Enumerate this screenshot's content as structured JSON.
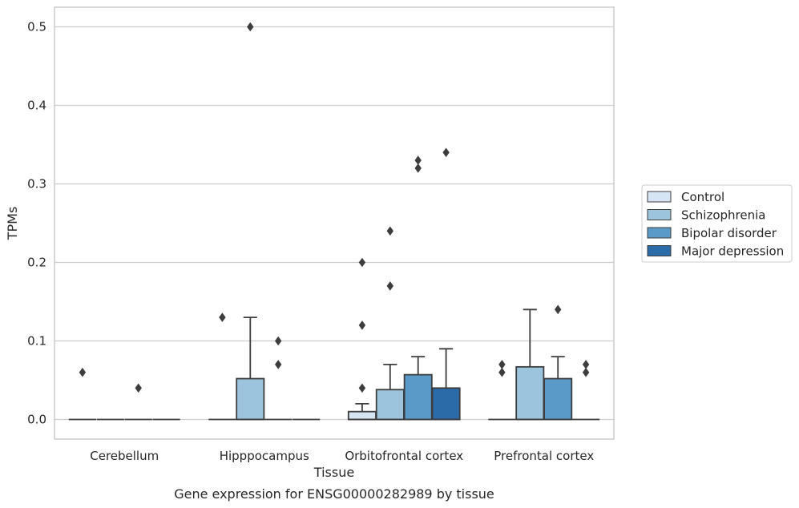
{
  "chart_data": {
    "type": "box",
    "title": "",
    "caption": "Gene expression for ENSG00000282989 by tissue",
    "xlabel": "Tissue",
    "ylabel": "TPMs",
    "ylim": [
      -0.025,
      0.525
    ],
    "yticks": [
      "0.0",
      "0.1",
      "0.2",
      "0.3",
      "0.4",
      "0.5"
    ],
    "ytick_values": [
      0.0,
      0.1,
      0.2,
      0.3,
      0.4,
      0.5
    ],
    "grid": true,
    "legend_position": "right",
    "categories": [
      "Cerebellum",
      "Hipppocampus",
      "Orbitofrontal cortex",
      "Prefrontal cortex"
    ],
    "series": [
      {
        "name": "Control",
        "color": "#d6e5f3",
        "boxes": [
          {
            "q1": 0,
            "median": 0,
            "q3": 0,
            "whisker_low": 0,
            "whisker_high": 0,
            "outliers": [
              0.06
            ]
          },
          {
            "q1": 0,
            "median": 0,
            "q3": 0,
            "whisker_low": 0,
            "whisker_high": 0,
            "outliers": [
              0.13
            ]
          },
          {
            "q1": 0,
            "median": 0,
            "q3": 0.01,
            "whisker_low": 0,
            "whisker_high": 0.02,
            "outliers": [
              0.04,
              0.12,
              0.2
            ]
          },
          {
            "q1": 0,
            "median": 0,
            "q3": 0,
            "whisker_low": 0,
            "whisker_high": 0,
            "outliers": [
              0.06,
              0.07
            ]
          }
        ]
      },
      {
        "name": "Schizophrenia",
        "color": "#9cc4dc",
        "boxes": [
          {
            "q1": 0,
            "median": 0,
            "q3": 0,
            "whisker_low": 0,
            "whisker_high": 0,
            "outliers": []
          },
          {
            "q1": 0,
            "median": 0,
            "q3": 0.052,
            "whisker_low": 0,
            "whisker_high": 0.13,
            "outliers": [
              0.5
            ]
          },
          {
            "q1": 0,
            "median": 0,
            "q3": 0.038,
            "whisker_low": 0,
            "whisker_high": 0.07,
            "outliers": [
              0.17,
              0.24
            ]
          },
          {
            "q1": 0,
            "median": 0,
            "q3": 0.067,
            "whisker_low": 0,
            "whisker_high": 0.14,
            "outliers": []
          }
        ]
      },
      {
        "name": "Bipolar disorder",
        "color": "#5a9ac9",
        "boxes": [
          {
            "q1": 0,
            "median": 0,
            "q3": 0,
            "whisker_low": 0,
            "whisker_high": 0,
            "outliers": [
              0.04
            ]
          },
          {
            "q1": 0,
            "median": 0,
            "q3": 0,
            "whisker_low": 0,
            "whisker_high": 0,
            "outliers": [
              0.07,
              0.1
            ]
          },
          {
            "q1": 0,
            "median": 0,
            "q3": 0.057,
            "whisker_low": 0,
            "whisker_high": 0.08,
            "outliers": [
              0.32,
              0.33
            ]
          },
          {
            "q1": 0,
            "median": 0,
            "q3": 0.052,
            "whisker_low": 0,
            "whisker_high": 0.08,
            "outliers": [
              0.14
            ]
          }
        ]
      },
      {
        "name": "Major depression",
        "color": "#2b6ba8",
        "boxes": [
          {
            "q1": 0,
            "median": 0,
            "q3": 0,
            "whisker_low": 0,
            "whisker_high": 0,
            "outliers": []
          },
          {
            "q1": 0,
            "median": 0,
            "q3": 0,
            "whisker_low": 0,
            "whisker_high": 0,
            "outliers": []
          },
          {
            "q1": 0,
            "median": 0,
            "q3": 0.04,
            "whisker_low": 0,
            "whisker_high": 0.09,
            "outliers": [
              0.34
            ]
          },
          {
            "q1": 0,
            "median": 0,
            "q3": 0,
            "whisker_low": 0,
            "whisker_high": 0,
            "outliers": [
              0.06,
              0.07
            ]
          }
        ]
      }
    ],
    "colors": {
      "grid": "#cccccc",
      "frame": "#cccccc",
      "box_edge": "#3d3d3d",
      "outlier": "#3d3d3d",
      "text": "#262626"
    }
  }
}
